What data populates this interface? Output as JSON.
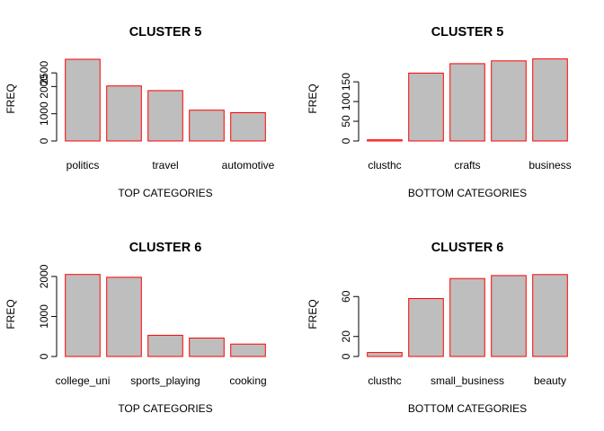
{
  "chart_data": [
    {
      "type": "bar",
      "title": "CLUSTER 5",
      "xlabel": "TOP CATEGORIES",
      "ylabel": "FREQ",
      "categories": [
        "politics",
        "",
        "travel",
        "",
        "automotive"
      ],
      "values": [
        3000,
        2020,
        1850,
        1130,
        1040
      ],
      "yticks": [
        0,
        1000,
        2000,
        2500
      ],
      "ylim": [
        0,
        3100
      ]
    },
    {
      "type": "bar",
      "title": "CLUSTER 5",
      "xlabel": "BOTTOM CATEGORIES",
      "ylabel": "FREQ",
      "categories": [
        "clusthc",
        "",
        "crafts",
        "",
        "business"
      ],
      "values": [
        3,
        172,
        196,
        203,
        208
      ],
      "yticks": [
        0,
        50,
        100,
        150
      ],
      "ylim": [
        0,
        214
      ]
    },
    {
      "type": "bar",
      "title": "CLUSTER 6",
      "xlabel": "TOP CATEGORIES",
      "ylabel": "FREQ",
      "categories": [
        "college_uni",
        "",
        "sports_playing",
        "",
        "cooking"
      ],
      "values": [
        2050,
        1980,
        530,
        460,
        310
      ],
      "yticks": [
        0,
        1000,
        2000
      ],
      "ylim": [
        0,
        2110
      ]
    },
    {
      "type": "bar",
      "title": "CLUSTER 6",
      "xlabel": "BOTTOM CATEGORIES",
      "ylabel": "FREQ",
      "categories": [
        "clusthc",
        "",
        "small_business",
        "",
        "beauty"
      ],
      "values": [
        4,
        58,
        78,
        81,
        82
      ],
      "yticks": [
        0,
        20,
        60
      ],
      "ylim": [
        0,
        84.5
      ]
    }
  ],
  "colors": {
    "bar_fill": "#bebebe",
    "bar_border": "#ff0000"
  }
}
